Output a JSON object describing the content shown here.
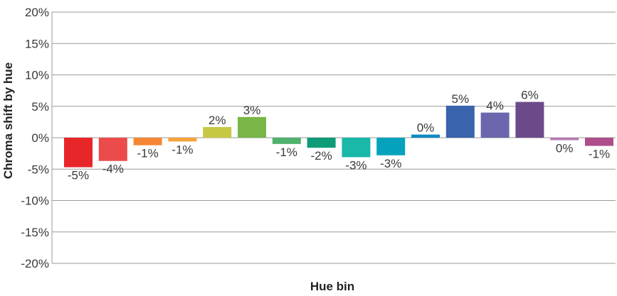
{
  "chart_data": {
    "type": "bar",
    "title": "",
    "xlabel": "Hue bin",
    "ylabel": "Chroma shift by hue",
    "ylim": [
      -20,
      20
    ],
    "y_ticks": [
      20,
      15,
      10,
      5,
      0,
      -5,
      -10,
      -15,
      -20
    ],
    "y_tick_labels": [
      "20%",
      "15%",
      "10%",
      "5%",
      "0%",
      "-5%",
      "-10%",
      "-15%",
      "-20%"
    ],
    "grid": true,
    "legend": "none",
    "values": [
      -4.7,
      -3.7,
      -1.2,
      -0.6,
      1.7,
      3.3,
      -1.0,
      -1.6,
      -3.1,
      -2.8,
      0.5,
      5.1,
      4.0,
      5.7,
      -0.4,
      -1.3
    ],
    "data_labels": [
      "-5%",
      "-4%",
      "-1%",
      "-1%",
      "2%",
      "3%",
      "-1%",
      "-2%",
      "-3%",
      "-3%",
      "0%",
      "5%",
      "4%",
      "6%",
      "0%",
      "-1%"
    ],
    "colors": [
      "#e8262a",
      "#eb4b4b",
      "#f58634",
      "#f7a23b",
      "#c7c843",
      "#7ab648",
      "#4fb26d",
      "#0e9b77",
      "#19b8a8",
      "#04a2bd",
      "#0d8ac2",
      "#3a63ad",
      "#6b66ad",
      "#6c4a89",
      "#b67bb3",
      "#ad4e8a"
    ]
  }
}
